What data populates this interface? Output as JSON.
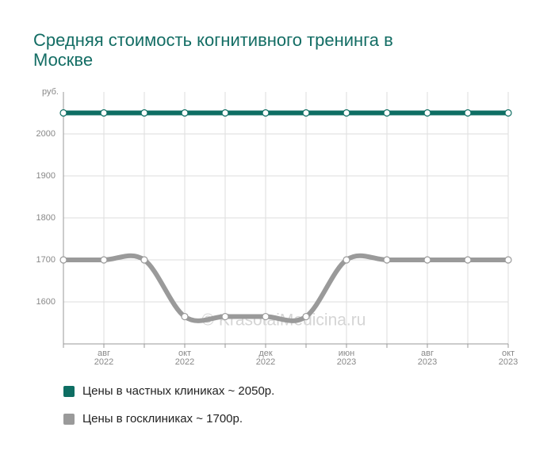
{
  "chart_data": {
    "type": "line",
    "title": "Средняя стоимость когнитивного тренинга в Москве",
    "y_label": "руб.",
    "annotation": "© KrasotaiMedicina.ru",
    "categories": [
      null,
      "авг 2022",
      null,
      "окт 2022",
      null,
      "дек 2022",
      null,
      "июн 2023",
      null,
      "авг 2023",
      null,
      "окт 2023"
    ],
    "series": [
      {
        "name": "Цены в частных клиниках ~ 2050р.",
        "color": "#0e6e63",
        "values": [
          2050,
          2050,
          2050,
          2050,
          2050,
          2050,
          2050,
          2050,
          2050,
          2050,
          2050,
          2050
        ]
      },
      {
        "name": "Цены в госклиниках ~ 1700р.",
        "color": "#9a9a9a",
        "values": [
          1700,
          1700,
          1700,
          1565,
          1565,
          1565,
          1565,
          1700,
          1700,
          1700,
          1700,
          1700
        ]
      }
    ],
    "ylim": [
      1500,
      2100
    ],
    "yticks": [
      1600,
      1700,
      1800,
      1900,
      2000
    ],
    "grid": true,
    "legend": "bottom"
  }
}
